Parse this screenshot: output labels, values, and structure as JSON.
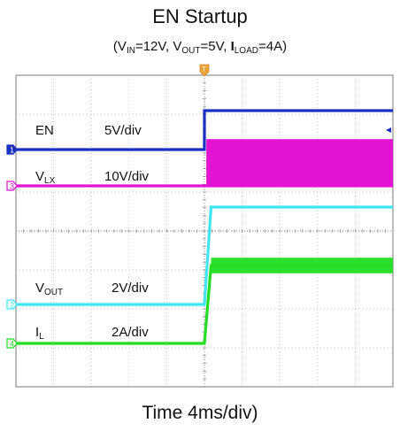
{
  "title": "EN Startup",
  "subtitle": {
    "vin_sym": "V",
    "vin_sub": "IN",
    "vin_val": "=12V, ",
    "vout_sym": "V",
    "vout_sub": "OUT",
    "vout_val": "=5V, ",
    "iload_sym": "I",
    "iload_sub": "LOAD",
    "iload_val": "=4A)",
    "open": "("
  },
  "xlabel": "Time 4ms/div)",
  "chart_data": {
    "type": "line",
    "title": "EN Startup",
    "subtitle": "(VIN=12V, VOUT=5V, ILOAD=4A)",
    "xlabel": "Time 4ms/div)",
    "ylabel": "",
    "grid": true,
    "time_per_div_ms": 4,
    "x_divisions": 10,
    "y_divisions": 8,
    "xlim_ms": [
      0,
      40
    ],
    "trigger_time_ms": 20,
    "trigger_marker": "T",
    "series": [
      {
        "name": "EN",
        "channel": "1",
        "scale": "5V/div",
        "units": "V",
        "color": "#1a2fc4",
        "points": [
          [
            0,
            0
          ],
          [
            20,
            0
          ],
          [
            20,
            5
          ],
          [
            40,
            5
          ]
        ]
      },
      {
        "name": "VLX",
        "name_main": "V",
        "name_sub": "LX",
        "channel": "3",
        "scale": "10V/div",
        "units": "V",
        "color": "#e214d2",
        "points": [
          [
            0,
            0
          ],
          [
            20,
            0
          ],
          [
            20,
            0
          ],
          [
            40,
            0
          ]
        ],
        "switching": {
          "from_ms": 20.2,
          "to_ms": 40,
          "low": 0,
          "high": 12
        }
      },
      {
        "name": "VOUT",
        "name_main": "V",
        "name_sub": "OUT",
        "channel": "2",
        "scale": "2V/div",
        "units": "V",
        "color": "#3fe6f2",
        "points": [
          [
            0,
            0
          ],
          [
            20,
            0
          ],
          [
            20.7,
            5
          ],
          [
            40,
            5
          ]
        ]
      },
      {
        "name": "IL",
        "name_main": "I",
        "name_sub": "L",
        "channel": "4",
        "scale": "2A/div",
        "units": "A",
        "color": "#22dd22",
        "points": [
          [
            0,
            0
          ],
          [
            20,
            0
          ],
          [
            20.7,
            4
          ],
          [
            40,
            4
          ]
        ],
        "ripple": {
          "from_ms": 20.7,
          "to_ms": 40,
          "amplitude_A": 0.8
        }
      }
    ]
  }
}
